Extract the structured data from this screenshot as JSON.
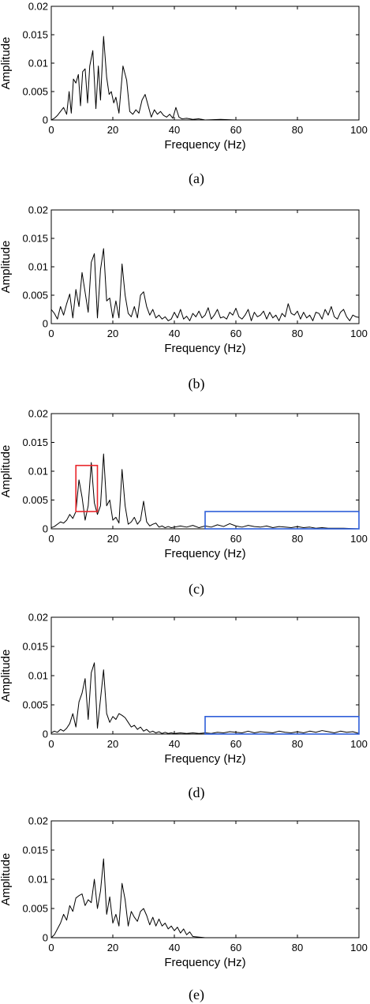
{
  "chart_data": [
    {
      "type": "line",
      "caption": "(a)",
      "xlabel": "Frequency (Hz)",
      "ylabel": "Amplitude",
      "xlim": [
        0,
        100
      ],
      "ylim": [
        0,
        0.02
      ],
      "xticks": [
        0,
        20,
        40,
        60,
        80,
        100
      ],
      "yticks": [
        0,
        0.005,
        0.01,
        0.015,
        0.02
      ],
      "xtick_labels": [
        "0",
        "20",
        "40",
        "60",
        "80",
        "100"
      ],
      "ytick_labels": [
        "0",
        "0.005",
        "0.01",
        "0.015",
        "0.02"
      ],
      "grid": false,
      "line_color": "#000000",
      "series": [
        {
          "x": [
            0,
            1,
            2,
            3,
            4,
            5,
            5.8,
            6.5,
            7.2,
            8,
            8.8,
            9.5,
            10.2,
            11,
            11.8,
            12.5,
            13.5,
            14.5,
            15.3,
            16,
            17,
            18,
            18.8,
            19.5,
            20.3,
            21,
            22,
            23.3,
            24.5,
            25.5,
            26.5,
            27.5,
            28.5,
            29.5,
            30.5,
            31.5,
            32.5,
            33.5,
            34.5,
            35.5,
            36.5,
            37.5,
            38.5,
            39.5,
            40.5,
            41.5,
            42.5,
            44,
            46,
            48,
            50,
            55,
            60,
            70,
            80,
            90,
            100
          ],
          "y": [
            0,
            0.0003,
            0.0008,
            0.0015,
            0.0022,
            0.001,
            0.005,
            0.0012,
            0.0072,
            0.0065,
            0.008,
            0.0025,
            0.0085,
            0.009,
            0.003,
            0.0095,
            0.0122,
            0.002,
            0.0095,
            0.0035,
            0.0147,
            0.0075,
            0.0045,
            0.005,
            0.003,
            0.004,
            0.0012,
            0.0095,
            0.007,
            0.0015,
            0.001,
            0.0018,
            0.0012,
            0.0035,
            0.0045,
            0.0025,
            0.0005,
            0.0018,
            0.001,
            0.0015,
            0.0008,
            0.0005,
            0.001,
            0.0003,
            0.0022,
            0.0005,
            0.0002,
            0.0003,
            0.0001,
            0.0002,
            0,
            0.0001,
            0,
            0,
            0,
            0,
            0
          ]
        }
      ]
    },
    {
      "type": "line",
      "caption": "(b)",
      "xlabel": "Frequency (Hz)",
      "ylabel": "Amplitude",
      "xlim": [
        0,
        100
      ],
      "ylim": [
        0,
        0.02
      ],
      "xticks": [
        0,
        20,
        40,
        60,
        80,
        100
      ],
      "yticks": [
        0,
        0.005,
        0.01,
        0.015,
        0.02
      ],
      "xtick_labels": [
        "0",
        "20",
        "40",
        "60",
        "80",
        "100"
      ],
      "ytick_labels": [
        "0",
        "0.005",
        "0.01",
        "0.015",
        "0.02"
      ],
      "grid": false,
      "line_color": "#000000",
      "series": [
        {
          "x": [
            0,
            1,
            2,
            3,
            4,
            5,
            6,
            7,
            8,
            9,
            10,
            11,
            12,
            13,
            14,
            15,
            16,
            17,
            18,
            19,
            20,
            21,
            22,
            23,
            24,
            25,
            26,
            27,
            28,
            29,
            30,
            31,
            32,
            33,
            34,
            35,
            36,
            37,
            38,
            39,
            40,
            41,
            42,
            43,
            44,
            45,
            46,
            47,
            48,
            49,
            50,
            51,
            52,
            53,
            54,
            55,
            56,
            57,
            58,
            59,
            60,
            61,
            62,
            63,
            64,
            65,
            66,
            67,
            68,
            69,
            70,
            71,
            72,
            73,
            74,
            75,
            76,
            77,
            78,
            79,
            80,
            81,
            82,
            83,
            84,
            85,
            86,
            87,
            88,
            89,
            90,
            91,
            92,
            93,
            94,
            95,
            96,
            97,
            98,
            99,
            100
          ],
          "y": [
            0.0025,
            0.0018,
            0.0008,
            0.003,
            0.0015,
            0.0035,
            0.0052,
            0.001,
            0.006,
            0.003,
            0.009,
            0.0055,
            0.002,
            0.0108,
            0.0123,
            0.001,
            0.0095,
            0.0132,
            0.004,
            0.0045,
            0.001,
            0.004,
            0.001,
            0.0105,
            0.005,
            0.0018,
            0.0012,
            0.003,
            0.001,
            0.005,
            0.0056,
            0.003,
            0.0015,
            0.0025,
            0.001,
            0.0015,
            0.0008,
            0.0012,
            0.0005,
            0.0008,
            0.002,
            0.001,
            0.0025,
            0.0008,
            0.0013,
            0.0005,
            0.0018,
            0.0012,
            0.0022,
            0.001,
            0.0015,
            0.0028,
            0.0008,
            0.0015,
            0.0025,
            0.001,
            0.0012,
            0.0008,
            0.002,
            0.0015,
            0.0027,
            0.0012,
            0.0008,
            0.0015,
            0.0025,
            0.0005,
            0.002,
            0.0012,
            0.0015,
            0.0022,
            0.0008,
            0.002,
            0.001,
            0.0015,
            0.0005,
            0.0018,
            0.0012,
            0.0035,
            0.0018,
            0.0015,
            0.0022,
            0.0008,
            0.002,
            0.001,
            0.0015,
            0.0005,
            0.002,
            0.0018,
            0.0008,
            0.0025,
            0.0015,
            0.003,
            0.0012,
            0.0008,
            0.002,
            0.0025,
            0.0012,
            0.0005,
            0.0015,
            0.0012,
            0.0011
          ]
        }
      ]
    },
    {
      "type": "line",
      "caption": "(c)",
      "xlabel": "Frequency (Hz)",
      "ylabel": "Amplitude",
      "xlim": [
        0,
        100
      ],
      "ylim": [
        0,
        0.02
      ],
      "xticks": [
        0,
        20,
        40,
        60,
        80,
        100
      ],
      "yticks": [
        0,
        0.005,
        0.01,
        0.015,
        0.02
      ],
      "xtick_labels": [
        "0",
        "20",
        "40",
        "60",
        "80",
        "100"
      ],
      "ytick_labels": [
        "0",
        "0.005",
        "0.01",
        "0.015",
        "0.02"
      ],
      "grid": false,
      "line_color": "#000000",
      "series": [
        {
          "x": [
            0,
            1,
            2,
            3,
            4,
            5,
            6,
            7,
            8,
            9,
            10,
            11,
            12,
            13,
            14,
            15,
            16,
            17,
            18,
            19,
            20,
            21,
            22,
            23,
            24,
            25,
            26,
            27,
            28,
            29,
            30,
            31,
            32,
            33,
            34,
            35,
            36,
            37,
            38,
            39,
            40,
            42,
            44,
            46,
            48,
            50,
            52,
            54,
            56,
            58,
            60,
            62,
            64,
            66,
            68,
            70,
            72,
            74,
            76,
            78,
            80,
            82,
            84,
            86,
            88,
            90,
            95,
            100
          ],
          "y": [
            0.0002,
            0.0004,
            0.0008,
            0.0012,
            0.001,
            0.0015,
            0.0025,
            0.0018,
            0.003,
            0.0085,
            0.0055,
            0.0015,
            0.004,
            0.0115,
            0.0045,
            0.0025,
            0.004,
            0.013,
            0.004,
            0.005,
            0.0015,
            0.002,
            0.001,
            0.0103,
            0.004,
            0.0008,
            0.0012,
            0.002,
            0.0008,
            0.0015,
            0.0048,
            0.0012,
            0.0005,
            0.0008,
            0.001,
            0.0003,
            0.0005,
            0.0002,
            0.0004,
            0.0002,
            0.0003,
            0.0005,
            0.0003,
            0.0006,
            0.0002,
            0.0005,
            0.0003,
            0.0007,
            0.0004,
            0.0009,
            0.0005,
            0.0003,
            0.0006,
            0.0004,
            0.0003,
            0.0005,
            0.0002,
            0.0004,
            0.0003,
            0.0002,
            0.0004,
            0.0002,
            0.0003,
            0.0001,
            0.0002,
            0.0001,
            0.0001,
            0
          ]
        }
      ],
      "annotations": [
        {
          "type": "rect",
          "color": "#e8262b",
          "x": [
            8,
            15
          ],
          "y": [
            0.003,
            0.011
          ]
        },
        {
          "type": "rect",
          "color": "#2e5ed8",
          "x": [
            50,
            100
          ],
          "y": [
            0,
            0.003
          ]
        }
      ]
    },
    {
      "type": "line",
      "caption": "(d)",
      "xlabel": "Frequency (Hz)",
      "ylabel": "Amplitude",
      "xlim": [
        0,
        100
      ],
      "ylim": [
        0,
        0.02
      ],
      "xticks": [
        0,
        20,
        40,
        60,
        80,
        100
      ],
      "yticks": [
        0,
        0.005,
        0.01,
        0.015,
        0.02
      ],
      "xtick_labels": [
        "0",
        "20",
        "40",
        "60",
        "80",
        "100"
      ],
      "ytick_labels": [
        "0",
        "0.005",
        "0.01",
        "0.015",
        "0.02"
      ],
      "grid": false,
      "line_color": "#000000",
      "series": [
        {
          "x": [
            0,
            1,
            2,
            3,
            4,
            5,
            6,
            7,
            8,
            9,
            10,
            11,
            12,
            13,
            14,
            15,
            16,
            17,
            18,
            19,
            20,
            21,
            22,
            23,
            24,
            25,
            26,
            27,
            28,
            29,
            30,
            31,
            32,
            33,
            34,
            35,
            36,
            37,
            38,
            39,
            40,
            42,
            44,
            46,
            48,
            50,
            52,
            54,
            56,
            58,
            60,
            62,
            64,
            66,
            68,
            70,
            72,
            74,
            76,
            78,
            80,
            82,
            84,
            86,
            88,
            90,
            92,
            94,
            96,
            98,
            100
          ],
          "y": [
            0.0002,
            0.0005,
            0.0003,
            0.0008,
            0.0005,
            0.001,
            0.0018,
            0.0035,
            0.0012,
            0.0055,
            0.007,
            0.0095,
            0.0025,
            0.0105,
            0.0122,
            0.001,
            0.006,
            0.011,
            0.0035,
            0.002,
            0.003,
            0.0025,
            0.0035,
            0.0032,
            0.0028,
            0.002,
            0.0012,
            0.0015,
            0.0008,
            0.0012,
            0.0005,
            0.0008,
            0.0003,
            0.0005,
            0.0002,
            0.0004,
            0.0001,
            0.0003,
            0.0001,
            0.0002,
            0.0001,
            0.0002,
            0.0001,
            0.0002,
            0.0001,
            0.0002,
            0.0001,
            0.0003,
            0.0002,
            0.0004,
            0.0003,
            0.0002,
            0.0005,
            0.0002,
            0.0004,
            0.0003,
            0.0002,
            0.0005,
            0.0003,
            0.0002,
            0.0004,
            0.0002,
            0.0005,
            0.0003,
            0.0006,
            0.0004,
            0.0002,
            0.0005,
            0.0003,
            0.0004,
            0.0001
          ]
        }
      ],
      "annotations": [
        {
          "type": "rect",
          "color": "#2e5ed8",
          "x": [
            50,
            100
          ],
          "y": [
            0,
            0.003
          ]
        }
      ]
    },
    {
      "type": "line",
      "caption": "(e)",
      "xlabel": "Frequency (Hz)",
      "ylabel": "Amplitude",
      "xlim": [
        0,
        100
      ],
      "ylim": [
        0,
        0.02
      ],
      "xticks": [
        0,
        20,
        40,
        60,
        80,
        100
      ],
      "yticks": [
        0,
        0.005,
        0.01,
        0.015,
        0.02
      ],
      "xtick_labels": [
        "0",
        "20",
        "40",
        "60",
        "80",
        "100"
      ],
      "ytick_labels": [
        "0",
        "0.005",
        "0.01",
        "0.015",
        "0.02"
      ],
      "grid": false,
      "line_color": "#000000",
      "series": [
        {
          "x": [
            0,
            1,
            2,
            3,
            4,
            5,
            6,
            7,
            8,
            9,
            10,
            11,
            12,
            13,
            14,
            15,
            16,
            17,
            18,
            19,
            20,
            21,
            22,
            23,
            24,
            25,
            26,
            27,
            28,
            29,
            30,
            31,
            32,
            33,
            34,
            35,
            36,
            37,
            38,
            39,
            40,
            41,
            42,
            43,
            44,
            45,
            46,
            48,
            50,
            55,
            60,
            70,
            80,
            90,
            100
          ],
          "y": [
            0,
            0.0005,
            0.0015,
            0.0025,
            0.004,
            0.003,
            0.0055,
            0.0045,
            0.0068,
            0.0072,
            0.0075,
            0.0055,
            0.0065,
            0.006,
            0.01,
            0.005,
            0.008,
            0.0135,
            0.004,
            0.007,
            0.0025,
            0.004,
            0.002,
            0.0093,
            0.0065,
            0.002,
            0.0045,
            0.0035,
            0.0028,
            0.0045,
            0.005,
            0.0038,
            0.0022,
            0.0035,
            0.002,
            0.0032,
            0.002,
            0.0025,
            0.0015,
            0.002,
            0.0012,
            0.0018,
            0.0008,
            0.0015,
            0.0005,
            0.001,
            0.0002,
            0.0001,
            0,
            0,
            0,
            0,
            0,
            0,
            0
          ]
        }
      ]
    }
  ]
}
